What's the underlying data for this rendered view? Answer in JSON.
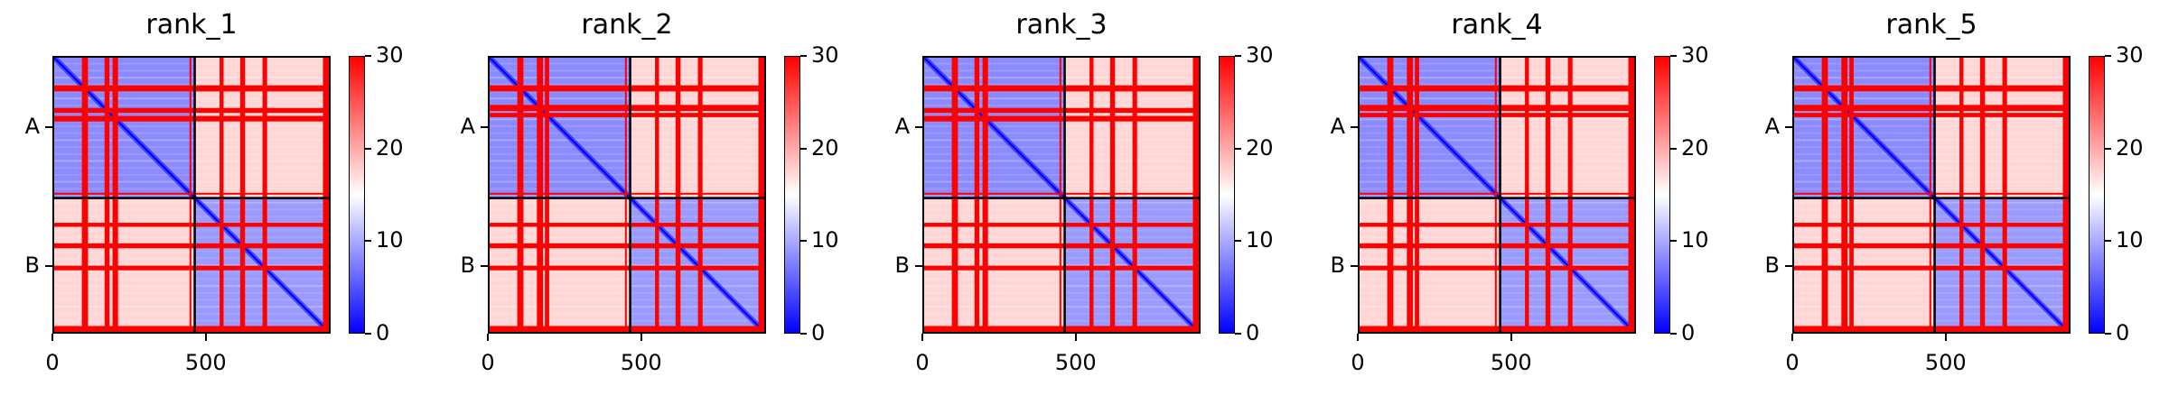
{
  "chart_data": [
    {
      "type": "heatmap",
      "title": "rank_1",
      "chains": [
        {
          "label": "A",
          "length": 464
        },
        {
          "label": "B",
          "length": 443
        }
      ],
      "x_ticks": [
        "0",
        "500"
      ],
      "xlim": [
        0,
        907
      ],
      "colorbar": {
        "min": 0,
        "max": 30,
        "ticks": [
          "0",
          "10",
          "20",
          "30"
        ],
        "colors": [
          "#0000ff",
          "#ffffff",
          "#ff0000"
        ]
      },
      "high_error_bands": [
        [
          0,
          3
        ],
        [
          96,
          116
        ],
        [
          170,
          186
        ],
        [
          196,
          214
        ],
        [
          447,
          452
        ],
        [
          545,
          558
        ],
        [
          612,
          628
        ],
        [
          685,
          700
        ],
        [
          882,
          907
        ]
      ]
    },
    {
      "type": "heatmap",
      "title": "rank_2",
      "chains": [
        {
          "label": "A",
          "length": 464
        },
        {
          "label": "B",
          "length": 443
        }
      ],
      "x_ticks": [
        "0",
        "500"
      ],
      "xlim": [
        0,
        907
      ],
      "colorbar": {
        "min": 0,
        "max": 30,
        "ticks": [
          "0",
          "10",
          "20",
          "30"
        ],
        "colors": [
          "#0000ff",
          "#ffffff",
          "#ff0000"
        ]
      },
      "high_error_bands": [
        [
          0,
          3
        ],
        [
          96,
          116
        ],
        [
          160,
          180
        ],
        [
          186,
          200
        ],
        [
          447,
          452
        ],
        [
          545,
          558
        ],
        [
          612,
          628
        ],
        [
          685,
          700
        ],
        [
          882,
          907
        ]
      ]
    },
    {
      "type": "heatmap",
      "title": "rank_3",
      "chains": [
        {
          "label": "A",
          "length": 464
        },
        {
          "label": "B",
          "length": 443
        }
      ],
      "x_ticks": [
        "0",
        "500"
      ],
      "xlim": [
        0,
        907
      ],
      "colorbar": {
        "min": 0,
        "max": 30,
        "ticks": [
          "0",
          "10",
          "20",
          "30"
        ],
        "colors": [
          "#0000ff",
          "#ffffff",
          "#ff0000"
        ]
      },
      "high_error_bands": [
        [
          0,
          3
        ],
        [
          96,
          116
        ],
        [
          170,
          186
        ],
        [
          196,
          214
        ],
        [
          447,
          452
        ],
        [
          545,
          558
        ],
        [
          612,
          628
        ],
        [
          685,
          700
        ],
        [
          882,
          907
        ]
      ]
    },
    {
      "type": "heatmap",
      "title": "rank_4",
      "chains": [
        {
          "label": "A",
          "length": 464
        },
        {
          "label": "B",
          "length": 443
        }
      ],
      "x_ticks": [
        "0",
        "500"
      ],
      "xlim": [
        0,
        907
      ],
      "colorbar": {
        "min": 0,
        "max": 30,
        "ticks": [
          "0",
          "10",
          "20",
          "30"
        ],
        "colors": [
          "#0000ff",
          "#ffffff",
          "#ff0000"
        ]
      },
      "high_error_bands": [
        [
          0,
          3
        ],
        [
          96,
          116
        ],
        [
          160,
          180
        ],
        [
          186,
          200
        ],
        [
          447,
          452
        ],
        [
          545,
          558
        ],
        [
          612,
          628
        ],
        [
          685,
          700
        ],
        [
          882,
          907
        ]
      ]
    },
    {
      "type": "heatmap",
      "title": "rank_5",
      "chains": [
        {
          "label": "A",
          "length": 464
        },
        {
          "label": "B",
          "length": 443
        }
      ],
      "x_ticks": [
        "0",
        "500"
      ],
      "xlim": [
        0,
        907
      ],
      "colorbar": {
        "min": 0,
        "max": 30,
        "ticks": [
          "0",
          "10",
          "20",
          "30"
        ],
        "colors": [
          "#0000ff",
          "#ffffff",
          "#ff0000"
        ]
      },
      "high_error_bands": [
        [
          0,
          3
        ],
        [
          96,
          116
        ],
        [
          160,
          180
        ],
        [
          186,
          200
        ],
        [
          447,
          452
        ],
        [
          545,
          558
        ],
        [
          612,
          628
        ],
        [
          685,
          700
        ],
        [
          882,
          907
        ]
      ]
    }
  ]
}
